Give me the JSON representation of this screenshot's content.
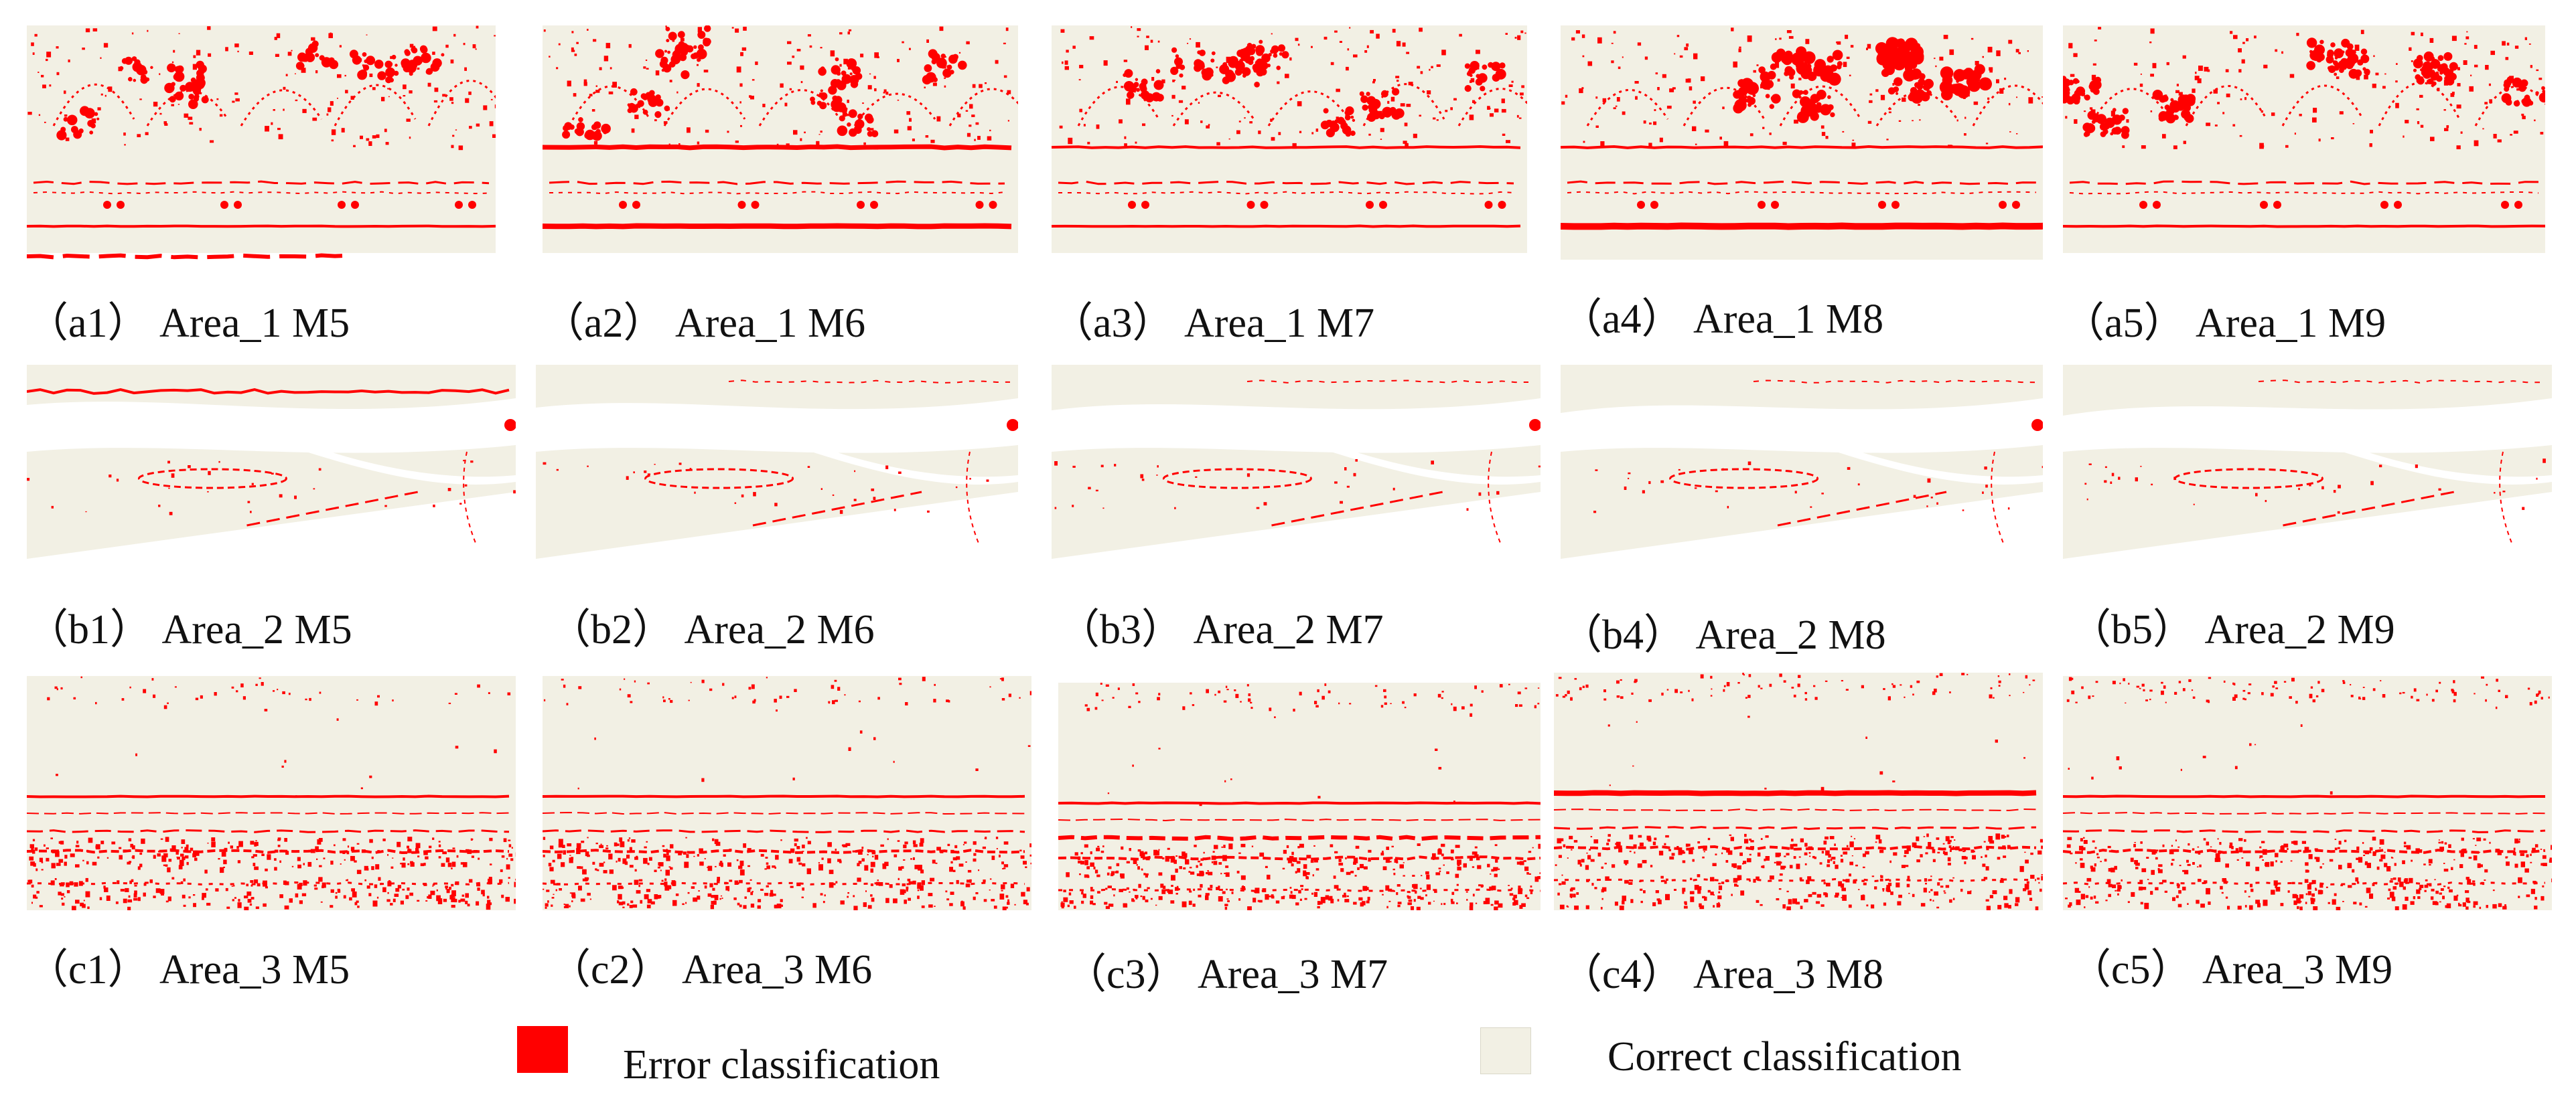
{
  "colors": {
    "error": "#ff0000",
    "correct": "#f2f0e4"
  },
  "rows": [
    {
      "area": "Area_1",
      "panels": [
        {
          "id": "a1",
          "caption": "（a1） Area_1 M5"
        },
        {
          "id": "a2",
          "caption": "（a2） Area_1 M6"
        },
        {
          "id": "a3",
          "caption": "（a3） Area_1 M7"
        },
        {
          "id": "a4",
          "caption": "（a4） Area_1 M8"
        },
        {
          "id": "a5",
          "caption": "（a5） Area_1 M9"
        }
      ]
    },
    {
      "area": "Area_2",
      "panels": [
        {
          "id": "b1",
          "caption": "（b1） Area_2 M5"
        },
        {
          "id": "b2",
          "caption": "（b2） Area_2 M6"
        },
        {
          "id": "b3",
          "caption": "（b3） Area_2 M7"
        },
        {
          "id": "b4",
          "caption": "（b4） Area_2 M8"
        },
        {
          "id": "b5",
          "caption": "（b5） Area_2 M9"
        }
      ]
    },
    {
      "area": "Area_3",
      "panels": [
        {
          "id": "c1",
          "caption": "（c1） Area_3 M5"
        },
        {
          "id": "c2",
          "caption": "（c2） Area_3 M6"
        },
        {
          "id": "c3",
          "caption": "（c3） Area_3 M7"
        },
        {
          "id": "c4",
          "caption": "（c4） Area_3 M8"
        },
        {
          "id": "c5",
          "caption": "（c5） Area_3 M9"
        }
      ]
    }
  ],
  "legend": {
    "error_label": "Error classification",
    "correct_label": "Correct classification"
  }
}
